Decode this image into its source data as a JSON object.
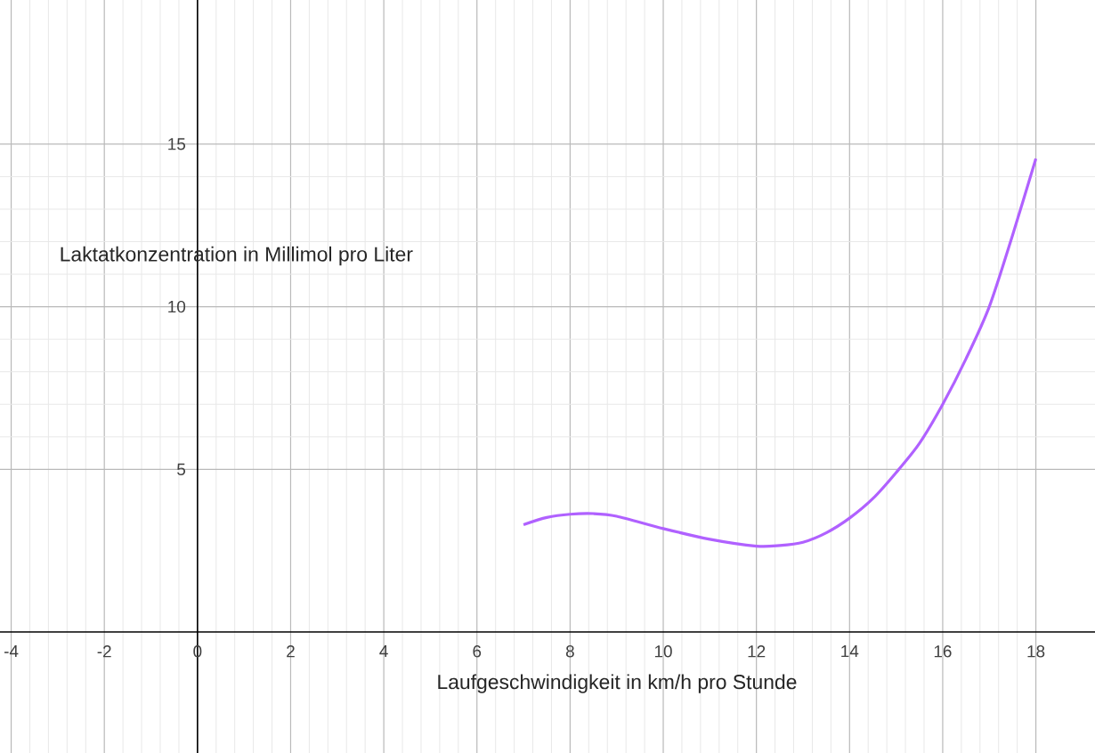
{
  "chart_data": {
    "type": "line",
    "xlabel": "Laufgeschwindigkeit in km/h pro Stunde",
    "ylabel": "Laktatkonzentration in Millimol pro Liter",
    "xlim": [
      -4.24,
      19.27
    ],
    "ylim": [
      -3.72,
      19.43
    ],
    "xticks": [
      -4,
      -2,
      0,
      2,
      4,
      6,
      8,
      10,
      12,
      14,
      16,
      18
    ],
    "yticks": [
      5,
      10,
      15
    ],
    "grid": true,
    "marker": "none",
    "line_style": "solid",
    "series": [
      {
        "color": "#b061ff",
        "x": [
          7,
          7.5,
          8,
          8.5,
          9,
          10,
          11,
          12,
          12.5,
          13,
          13.5,
          14,
          14.5,
          15,
          15.5,
          16,
          16.5,
          17,
          17.5,
          18
        ],
        "values": [
          3.3,
          3.52,
          3.62,
          3.64,
          3.56,
          3.18,
          2.85,
          2.64,
          2.66,
          2.76,
          3.05,
          3.5,
          4.1,
          4.9,
          5.8,
          7.0,
          8.4,
          10.0,
          12.2,
          14.55
        ]
      }
    ]
  }
}
